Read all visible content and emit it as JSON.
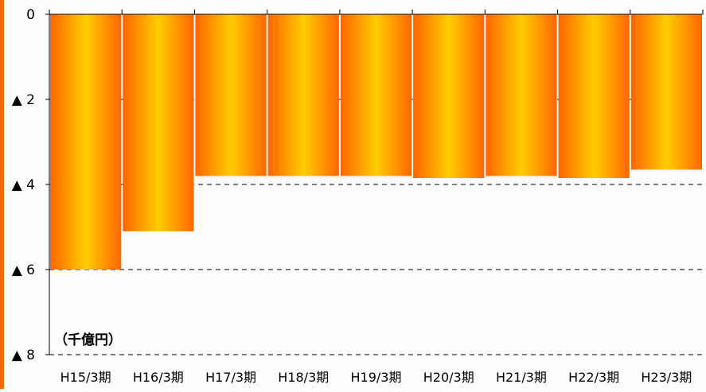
{
  "chart_data": {
    "type": "bar",
    "unit_label": "（千億円）",
    "categories": [
      "H15/3期",
      "H16/3期",
      "H17/3期",
      "H18/3期",
      "H19/3期",
      "H20/3期",
      "H21/3期",
      "H22/3期",
      "H23/3期"
    ],
    "values": [
      -6.0,
      -5.1,
      -3.8,
      -3.8,
      -3.8,
      -3.85,
      -3.8,
      -3.85,
      -3.65
    ],
    "ylim": [
      -8,
      0
    ],
    "yticks": [
      {
        "value": 0,
        "label": "0"
      },
      {
        "value": -2,
        "label": "▲ 2"
      },
      {
        "value": -4,
        "label": "▲ 4"
      },
      {
        "value": -6,
        "label": "▲ 6"
      },
      {
        "value": -8,
        "label": "▲ 8"
      }
    ],
    "gridlines": "dashed at -4, -6, -8",
    "bar_colors": {
      "edge": "#ff6600",
      "center": "#ffcc00"
    },
    "accent_color": "#ff6600"
  }
}
